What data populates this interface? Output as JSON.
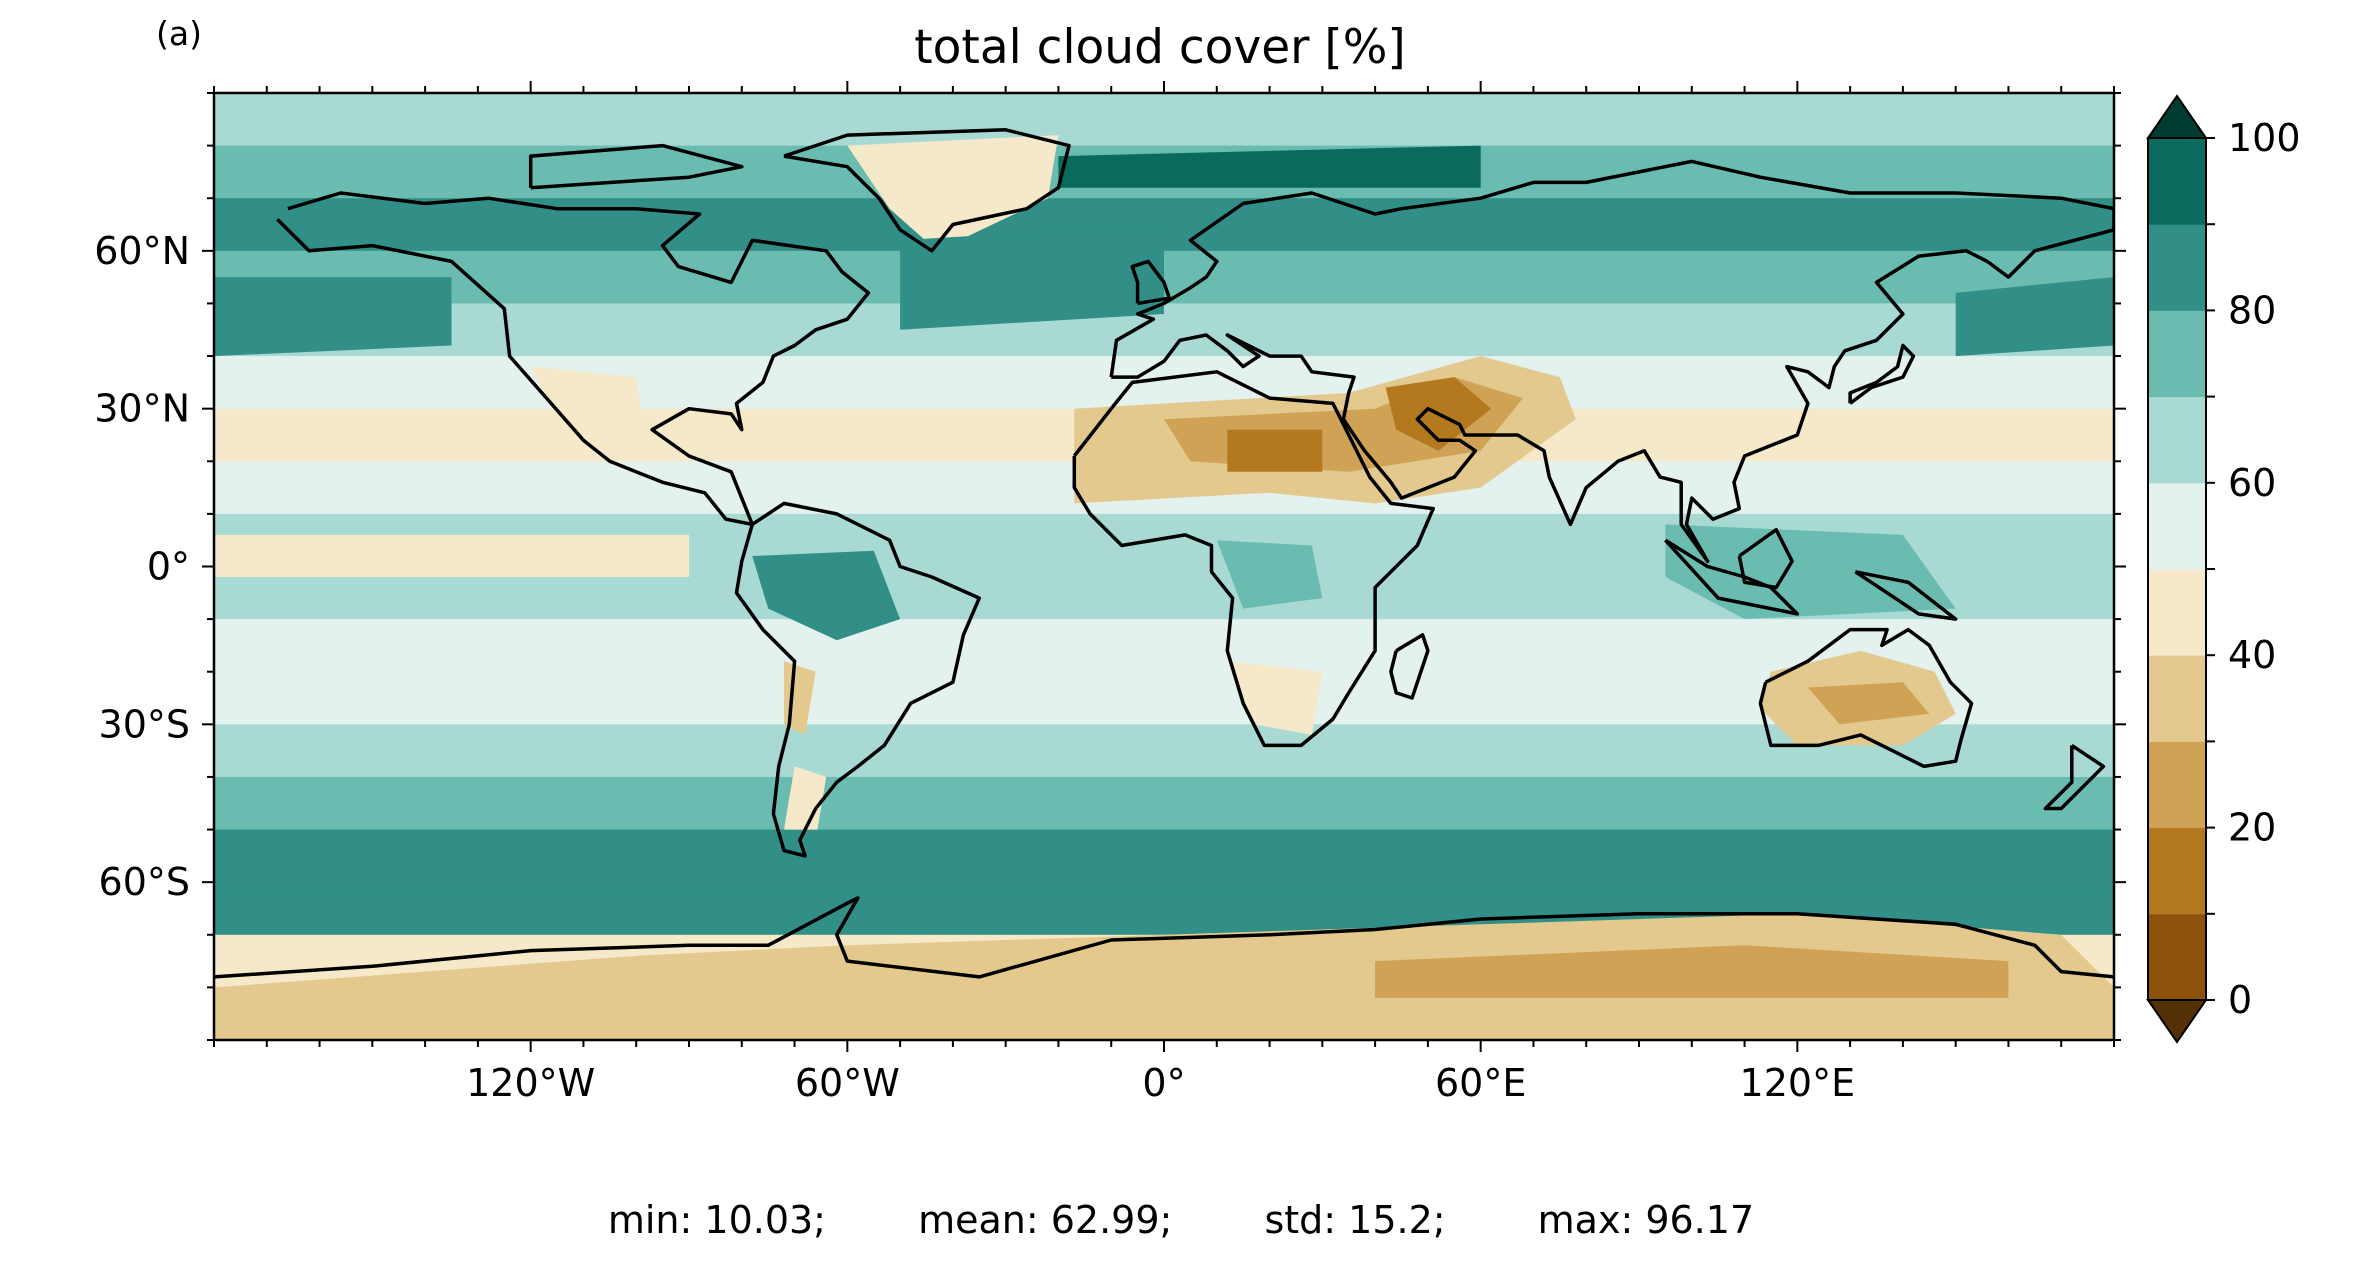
{
  "panel_label": "(a)",
  "title": "total cloud cover [%]",
  "stats": {
    "min": "min: 10.03;",
    "mean": "mean: 62.99;",
    "std": "std: 15.2;",
    "max": "max: 96.17"
  },
  "chart_data": {
    "type": "heatmap",
    "title": "total cloud cover [%]",
    "projection": "plate-carree",
    "x_ticks": [
      "120°W",
      "60°W",
      "0°",
      "60°E",
      "120°E"
    ],
    "x_tick_values": [
      -120,
      -60,
      0,
      60,
      120
    ],
    "y_ticks": [
      "60°N",
      "30°N",
      "0°",
      "30°S",
      "60°S"
    ],
    "y_tick_values": [
      60,
      30,
      0,
      -30,
      -60
    ],
    "xlim": [
      -180,
      180
    ],
    "ylim": [
      -90,
      90
    ],
    "colorbar": {
      "ticks": [
        "0",
        "20",
        "40",
        "60",
        "80",
        "100"
      ],
      "tick_values": [
        0,
        20,
        40,
        60,
        80,
        100
      ],
      "levels": [
        0,
        10,
        20,
        30,
        40,
        50,
        60,
        70,
        80,
        90,
        100
      ],
      "colors": [
        "#8c510a",
        "#b4781f",
        "#cfa256",
        "#e3c98d",
        "#f5e9c9",
        "#e3f1ef",
        "#a8dad3",
        "#6bbcb0",
        "#318f87",
        "#0b6a5e"
      ],
      "extend": "both",
      "under_color": "#543005",
      "over_color": "#003c30"
    },
    "zonal_mean_cover": [
      {
        "lat": 85,
        "value": 60
      },
      {
        "lat": 75,
        "value": 72
      },
      {
        "lat": 65,
        "value": 80
      },
      {
        "lat": 55,
        "value": 78
      },
      {
        "lat": 45,
        "value": 68
      },
      {
        "lat": 35,
        "value": 55
      },
      {
        "lat": 25,
        "value": 45
      },
      {
        "lat": 15,
        "value": 52
      },
      {
        "lat": 5,
        "value": 64
      },
      {
        "lat": -5,
        "value": 60
      },
      {
        "lat": -15,
        "value": 52
      },
      {
        "lat": -25,
        "value": 56
      },
      {
        "lat": -35,
        "value": 66
      },
      {
        "lat": -45,
        "value": 76
      },
      {
        "lat": -55,
        "value": 84
      },
      {
        "lat": -65,
        "value": 80
      },
      {
        "lat": -75,
        "value": 40
      },
      {
        "lat": -85,
        "value": 35
      }
    ],
    "stats": {
      "min": 10.03,
      "mean": 62.99,
      "std": 15.2,
      "max": 96.17
    }
  }
}
